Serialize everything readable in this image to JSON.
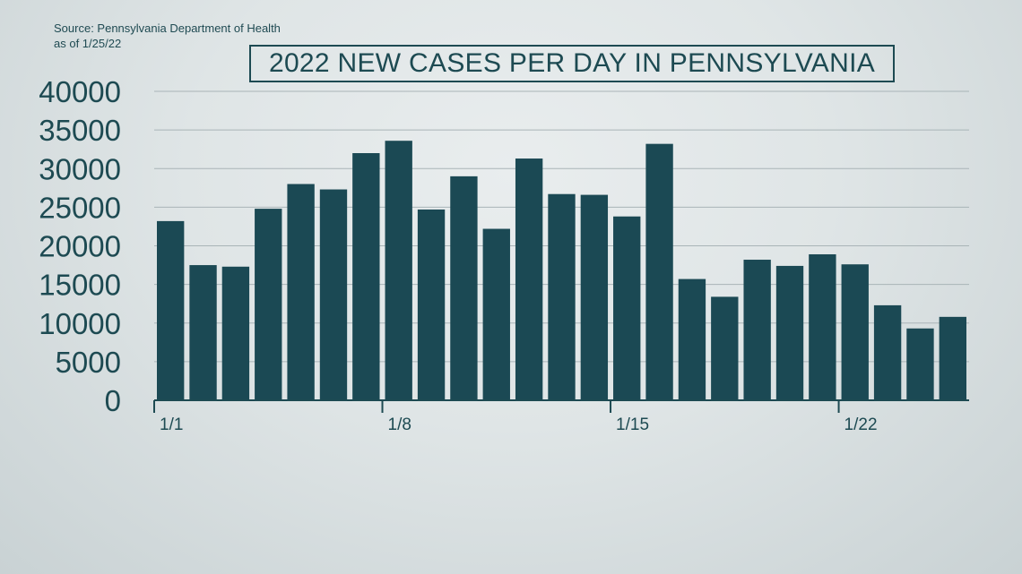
{
  "source": {
    "line1": "Source: Pennsylvania Department of Health",
    "line2": "as of 1/25/22"
  },
  "colors": {
    "bar": "#1b4954",
    "text": "#1d4a52",
    "grid": "#a9b4b7",
    "axis": "#1d4a52"
  },
  "chart_data": {
    "type": "bar",
    "title": "2022 NEW CASES PER DAY IN PENNSYLVANIA",
    "xlabel": "",
    "ylabel": "",
    "ylim": [
      0,
      40000
    ],
    "yticks": [
      0,
      5000,
      10000,
      15000,
      20000,
      25000,
      30000,
      35000,
      40000
    ],
    "grid": true,
    "categories": [
      "1/1",
      "1/2",
      "1/3",
      "1/4",
      "1/5",
      "1/6",
      "1/7",
      "1/8",
      "1/9",
      "1/10",
      "1/11",
      "1/12",
      "1/13",
      "1/14",
      "1/15",
      "1/16",
      "1/17",
      "1/18",
      "1/19",
      "1/20",
      "1/21",
      "1/22",
      "1/23",
      "1/24",
      "1/25"
    ],
    "xtick_labels": [
      "1/1",
      "1/8",
      "1/15",
      "1/22"
    ],
    "values": [
      23200,
      17500,
      17300,
      24800,
      28000,
      27300,
      32000,
      33600,
      24700,
      29000,
      22200,
      31300,
      26700,
      26600,
      23800,
      33200,
      15700,
      13400,
      18200,
      17400,
      18900,
      17600,
      12300,
      9300,
      10800
    ]
  }
}
